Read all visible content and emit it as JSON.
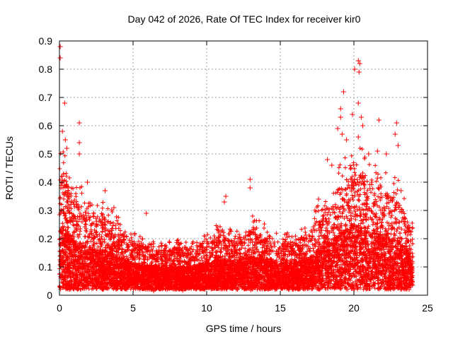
{
  "chart_data": {
    "type": "scatter",
    "title": "Day 042 of 2026, Rate Of TEC Index for receiver kir0",
    "xlabel": "GPS time / hours",
    "ylabel": "ROTI / TECUs",
    "xlim": [
      0,
      25
    ],
    "ylim": [
      0,
      0.9
    ],
    "x_ticks": [
      0,
      5,
      10,
      15,
      20,
      25
    ],
    "x_tick_labels": [
      "0",
      "5",
      "10",
      "15",
      "20",
      "25"
    ],
    "y_ticks": [
      0,
      0.1,
      0.2,
      0.3,
      0.4,
      0.5,
      0.6,
      0.7,
      0.8,
      0.9
    ],
    "y_tick_labels": [
      "0",
      "0.1",
      "0.2",
      "0.3",
      "0.4",
      "0.5",
      "0.6",
      "0.7",
      "0.8",
      "0.9"
    ],
    "grid": true,
    "marker": "plus",
    "colors": {
      "points": "#ff0000",
      "grid": "#a0a0a0",
      "axes": "#000000"
    },
    "envelope": {
      "x": [
        0,
        0.5,
        1,
        1.5,
        2,
        3,
        4,
        5,
        6,
        7,
        8,
        9,
        10,
        11,
        12,
        13,
        14,
        15,
        16,
        17,
        18,
        19,
        20,
        21,
        22,
        23,
        24
      ],
      "upper": [
        0.45,
        0.38,
        0.32,
        0.3,
        0.26,
        0.26,
        0.22,
        0.17,
        0.15,
        0.14,
        0.15,
        0.15,
        0.17,
        0.2,
        0.18,
        0.22,
        0.2,
        0.16,
        0.18,
        0.2,
        0.3,
        0.36,
        0.42,
        0.4,
        0.35,
        0.32,
        0.2
      ]
    },
    "highlight_points": [
      {
        "x": 0.05,
        "y": 0.88
      },
      {
        "x": 0.05,
        "y": 0.84
      },
      {
        "x": 0.35,
        "y": 0.68
      },
      {
        "x": 0.2,
        "y": 0.58
      },
      {
        "x": 0.4,
        "y": 0.55
      },
      {
        "x": 0.5,
        "y": 0.52
      },
      {
        "x": 1.35,
        "y": 0.61
      },
      {
        "x": 1.35,
        "y": 0.54
      },
      {
        "x": 1.35,
        "y": 0.5
      },
      {
        "x": 1.9,
        "y": 0.4
      },
      {
        "x": 3.1,
        "y": 0.37
      },
      {
        "x": 3.7,
        "y": 0.31
      },
      {
        "x": 5.9,
        "y": 0.29
      },
      {
        "x": 11.3,
        "y": 0.35
      },
      {
        "x": 11.2,
        "y": 0.33
      },
      {
        "x": 12.95,
        "y": 0.41
      },
      {
        "x": 12.95,
        "y": 0.38
      },
      {
        "x": 17.6,
        "y": 0.34
      },
      {
        "x": 18.2,
        "y": 0.48
      },
      {
        "x": 18.5,
        "y": 0.46
      },
      {
        "x": 18.9,
        "y": 0.59
      },
      {
        "x": 19.1,
        "y": 0.66
      },
      {
        "x": 19.1,
        "y": 0.63
      },
      {
        "x": 19.2,
        "y": 0.57
      },
      {
        "x": 19.3,
        "y": 0.72
      },
      {
        "x": 19.5,
        "y": 0.55
      },
      {
        "x": 19.9,
        "y": 0.64
      },
      {
        "x": 20.05,
        "y": 0.8
      },
      {
        "x": 20.3,
        "y": 0.83
      },
      {
        "x": 20.4,
        "y": 0.82
      },
      {
        "x": 20.35,
        "y": 0.79
      },
      {
        "x": 20.3,
        "y": 0.68
      },
      {
        "x": 20.5,
        "y": 0.63
      },
      {
        "x": 20.3,
        "y": 0.56
      },
      {
        "x": 20.6,
        "y": 0.6
      },
      {
        "x": 21.0,
        "y": 0.5
      },
      {
        "x": 21.6,
        "y": 0.51
      },
      {
        "x": 21.7,
        "y": 0.62
      },
      {
        "x": 22.2,
        "y": 0.5
      },
      {
        "x": 22.9,
        "y": 0.61
      },
      {
        "x": 22.8,
        "y": 0.57
      },
      {
        "x": 23.0,
        "y": 0.53
      },
      {
        "x": 23.2,
        "y": 0.37
      },
      {
        "x": 23.6,
        "y": 0.23
      }
    ]
  }
}
